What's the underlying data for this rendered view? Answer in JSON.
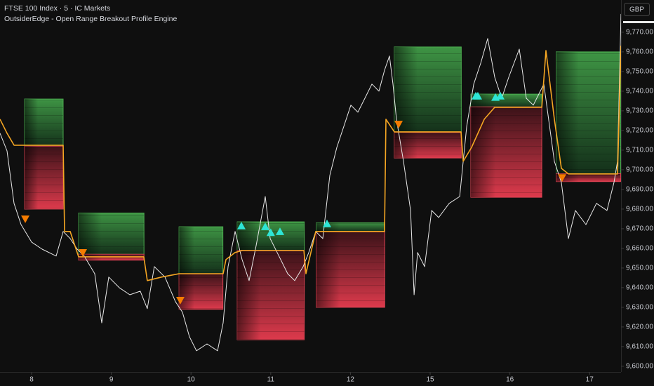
{
  "chart_data": {
    "type": "line",
    "title": "FTSE 100 Index · 5 · IC Markets",
    "subtitle": "OutsiderEdge - Open Range Breakout Profile Engine",
    "currency": "GBP",
    "xlim": [
      0.604,
      8.394
    ],
    "ylim": [
      9597.1,
      9786.4
    ],
    "xticks": [
      {
        "value": 1,
        "label": "8"
      },
      {
        "value": 2,
        "label": "9"
      },
      {
        "value": 3,
        "label": "10"
      },
      {
        "value": 4,
        "label": "11"
      },
      {
        "value": 5,
        "label": "12"
      },
      {
        "value": 6,
        "label": "15"
      },
      {
        "value": 7,
        "label": "16"
      },
      {
        "value": 8,
        "label": "17"
      }
    ],
    "yticks": [
      {
        "value": 9600,
        "label": "9,600.00"
      },
      {
        "value": 9610,
        "label": "9,610.00"
      },
      {
        "value": 9620,
        "label": "9,620.00"
      },
      {
        "value": 9630,
        "label": "9,630.00"
      },
      {
        "value": 9640,
        "label": "9,640.00"
      },
      {
        "value": 9650,
        "label": "9,650.00"
      },
      {
        "value": 9660,
        "label": "9,660.00"
      },
      {
        "value": 9670,
        "label": "9,670.00"
      },
      {
        "value": 9680,
        "label": "9,680.00"
      },
      {
        "value": 9690,
        "label": "9,690.00"
      },
      {
        "value": 9700,
        "label": "9,700.00"
      },
      {
        "value": 9710,
        "label": "9,710.00"
      },
      {
        "value": 9720,
        "label": "9,720.00"
      },
      {
        "value": 9730,
        "label": "9,730.00"
      },
      {
        "value": 9740,
        "label": "9,740.00"
      },
      {
        "value": 9750,
        "label": "9,750.00"
      },
      {
        "value": 9760,
        "label": "9,760.00"
      },
      {
        "value": 9770,
        "label": "9,770.00"
      }
    ],
    "boxes": [
      {
        "x": [
          0.912,
          1.396
        ],
        "top": 9736,
        "mid": 9712,
        "bottom": 9680
      },
      {
        "x": [
          1.59,
          2.41
        ],
        "top": 9678,
        "mid": 9657,
        "bottom": 9654
      },
      {
        "x": [
          2.85,
          3.4
        ],
        "top": 9671,
        "mid": 9647,
        "bottom": 9629
      },
      {
        "x": [
          3.58,
          4.42
        ],
        "top": 9673.5,
        "mid": 9659,
        "bottom": 9613.5
      },
      {
        "x": [
          4.57,
          5.43
        ],
        "top": 9673,
        "mid": 9668.5,
        "bottom": 9630
      },
      {
        "x": [
          5.55,
          6.39
        ],
        "top": 9762.5,
        "mid": 9719,
        "bottom": 9706
      },
      {
        "x": [
          6.51,
          7.4
        ],
        "top": 9738.5,
        "mid": 9732,
        "bottom": 9686
      },
      {
        "x": [
          7.58,
          8.39
        ],
        "top": 9760,
        "mid": 9698,
        "bottom": 9694
      }
    ],
    "series": [
      {
        "color": "#e8e8e8",
        "x": [
          0.604,
          0.692,
          0.78,
          0.868,
          1.0,
          1.132,
          1.308,
          1.396,
          1.484,
          1.572,
          1.66,
          1.792,
          1.88,
          1.968,
          2.1,
          2.232,
          2.364,
          2.452,
          2.54,
          2.673,
          2.805,
          2.893,
          2.981,
          3.069,
          3.201,
          3.333,
          3.403,
          3.465,
          3.553,
          3.641,
          3.729,
          3.817,
          3.931,
          3.993,
          4.081,
          4.213,
          4.301,
          4.407,
          4.477,
          4.565,
          4.653,
          4.741,
          4.829,
          4.917,
          5.005,
          5.093,
          5.181,
          5.269,
          5.357,
          5.428,
          5.489,
          5.533,
          5.577,
          5.665,
          5.754,
          5.798,
          5.842,
          5.93,
          6.018,
          6.106,
          6.238,
          6.37,
          6.458,
          6.546,
          6.634,
          6.722,
          6.81,
          6.898,
          6.986,
          7.118,
          7.206,
          7.294,
          7.426,
          7.558,
          7.646,
          7.734,
          7.822,
          7.954,
          8.086,
          8.218,
          8.306,
          8.35,
          8.394
        ],
        "values": [
          9718.6,
          9709.6,
          9682.9,
          9672.1,
          9663.2,
          9659.6,
          9656.1,
          9668.6,
          9665,
          9659.6,
          9656.1,
          9647.1,
          9622.1,
          9645.4,
          9640,
          9636.4,
          9638.2,
          9629.3,
          9650.7,
          9645.4,
          9632.9,
          9627.5,
          9615,
          9607.9,
          9611.4,
          9607.9,
          9622.1,
          9650.7,
          9668.6,
          9654.3,
          9643.6,
          9661.4,
          9686.4,
          9665,
          9657.9,
          9647.1,
          9643.6,
          9650.7,
          9657.9,
          9668.6,
          9665,
          9697.1,
          9711.4,
          9722.1,
          9732.9,
          9729.3,
          9736.4,
          9743.6,
          9740,
          9750.7,
          9757.9,
          9743.6,
          9725.7,
          9704.3,
          9679.3,
          9636.4,
          9657.9,
          9650.7,
          9679.3,
          9675.7,
          9682.9,
          9686.4,
          9722.1,
          9743.6,
          9754.3,
          9766.8,
          9747.1,
          9736.4,
          9747.1,
          9761.4,
          9736.4,
          9732.9,
          9743.6,
          9704.3,
          9693.6,
          9665,
          9679.3,
          9672.1,
          9682.9,
          9679.3,
          9693.6,
          9704.3,
          9779.3
        ]
      },
      {
        "color": "#f5a623",
        "x": [
          0.604,
          0.692,
          0.78,
          1.396,
          1.414,
          1.484,
          1.59,
          2.408,
          2.452,
          2.629,
          2.849,
          3.403,
          3.438,
          3.553,
          3.641,
          4.416,
          4.442,
          4.565,
          5.428,
          5.445,
          5.551,
          6.387,
          6.414,
          6.519,
          6.678,
          6.81,
          7.4,
          7.452,
          7.558,
          7.646,
          7.734,
          8.35,
          8.394
        ],
        "values": [
          9725.7,
          9718.6,
          9712.5,
          9712.5,
          9668.6,
          9668.6,
          9655.7,
          9655.7,
          9643.6,
          9645.4,
          9647.1,
          9647.1,
          9654.3,
          9657.9,
          9658.9,
          9658.9,
          9647.1,
          9668.6,
          9668.6,
          9725.7,
          9719.3,
          9719.3,
          9704.3,
          9711.4,
          9725.7,
          9731.8,
          9731.8,
          9760.7,
          9725.7,
          9700.7,
          9697.9,
          9697.9,
          9763.2
        ]
      }
    ],
    "signals": [
      {
        "direction": "up",
        "color": "#2ee6d6",
        "x": [
          3.632,
          3.931,
          4.0,
          4.116,
          4.706,
          6.572,
          6.598,
          6.819,
          6.88
        ],
        "values": [
          9671.4,
          9671,
          9668,
          9668.5,
          9672.5,
          9737.5,
          9737.5,
          9736.8,
          9737.5
        ]
      },
      {
        "direction": "down",
        "color": "#f57c00",
        "x": [
          0.921,
          1.643,
          2.866,
          5.604,
          7.655
        ],
        "values": [
          9675,
          9657.9,
          9633.6,
          9723.2,
          9696
        ]
      }
    ]
  }
}
